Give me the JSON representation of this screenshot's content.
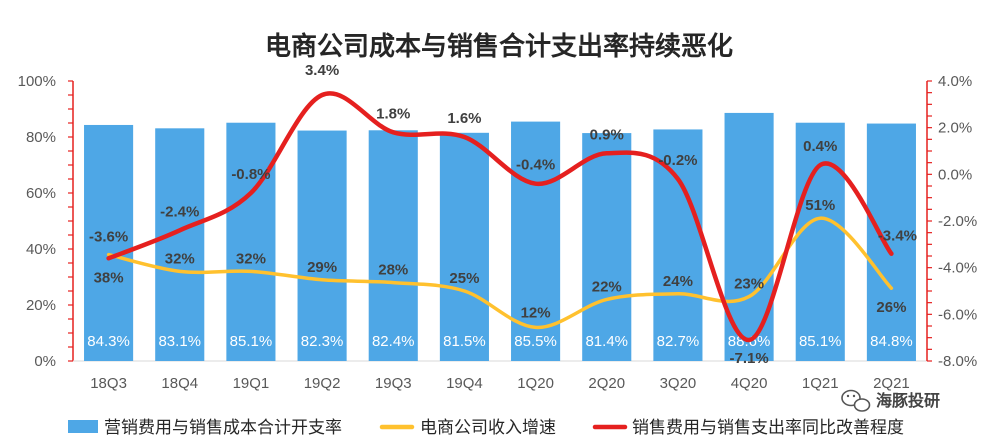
{
  "chart_data": {
    "type": "bar",
    "title": "电商公司成本与销售合计支出率持续恶化",
    "categories": [
      "18Q3",
      "18Q4",
      "19Q1",
      "19Q2",
      "19Q3",
      "19Q4",
      "1Q20",
      "2Q20",
      "3Q20",
      "4Q20",
      "1Q21",
      "2Q21"
    ],
    "left_axis": {
      "ticks": [
        "0%",
        "20%",
        "40%",
        "60%",
        "80%",
        "100%"
      ],
      "ylim": [
        0,
        100
      ]
    },
    "right_axis": {
      "ticks": [
        "-8.0%",
        "-6.0%",
        "-4.0%",
        "-2.0%",
        "0.0%",
        "2.0%",
        "4.0%"
      ],
      "ylim": [
        -8,
        4
      ]
    },
    "series": [
      {
        "name": "营销费用与销售成本合计开支率",
        "kind": "bar",
        "axis": "left",
        "color": "#4EA7E6",
        "values": [
          84.3,
          83.1,
          85.1,
          82.3,
          82.4,
          81.5,
          85.5,
          81.4,
          82.7,
          88.6,
          85.1,
          84.8
        ],
        "labels": [
          "84.3%",
          "83.1%",
          "85.1%",
          "82.3%",
          "82.4%",
          "81.5%",
          "85.5%",
          "81.4%",
          "82.7%",
          "88.6%",
          "85.1%",
          "84.8%"
        ]
      },
      {
        "name": "电商公司收入增速",
        "kind": "line",
        "axis": "left",
        "color": "#FFC12E",
        "values": [
          38,
          32,
          32,
          29,
          28,
          25,
          12,
          22,
          24,
          23,
          51,
          26
        ],
        "labels": [
          "38%",
          "32%",
          "32%",
          "29%",
          "28%",
          "25%",
          "12%",
          "22%",
          "24%",
          "23%",
          "51%",
          "26%"
        ]
      },
      {
        "name": "销售费用与销售支出率同比改善程度",
        "kind": "line",
        "axis": "right",
        "color": "#E5201F",
        "values": [
          -3.6,
          -2.4,
          -0.8,
          3.4,
          1.8,
          1.6,
          -0.4,
          0.9,
          -0.2,
          -7.1,
          0.4,
          -3.4
        ],
        "labels": [
          "-3.6%",
          "-2.4%",
          "-0.8%",
          "3.4%",
          "1.8%",
          "1.6%",
          "-0.4%",
          "0.9%",
          "-0.2%",
          "-7.1%",
          "0.4%",
          "-3.4%"
        ]
      }
    ]
  },
  "watermark": {
    "text": "海豚投研",
    "icon": "wechat-icon"
  }
}
